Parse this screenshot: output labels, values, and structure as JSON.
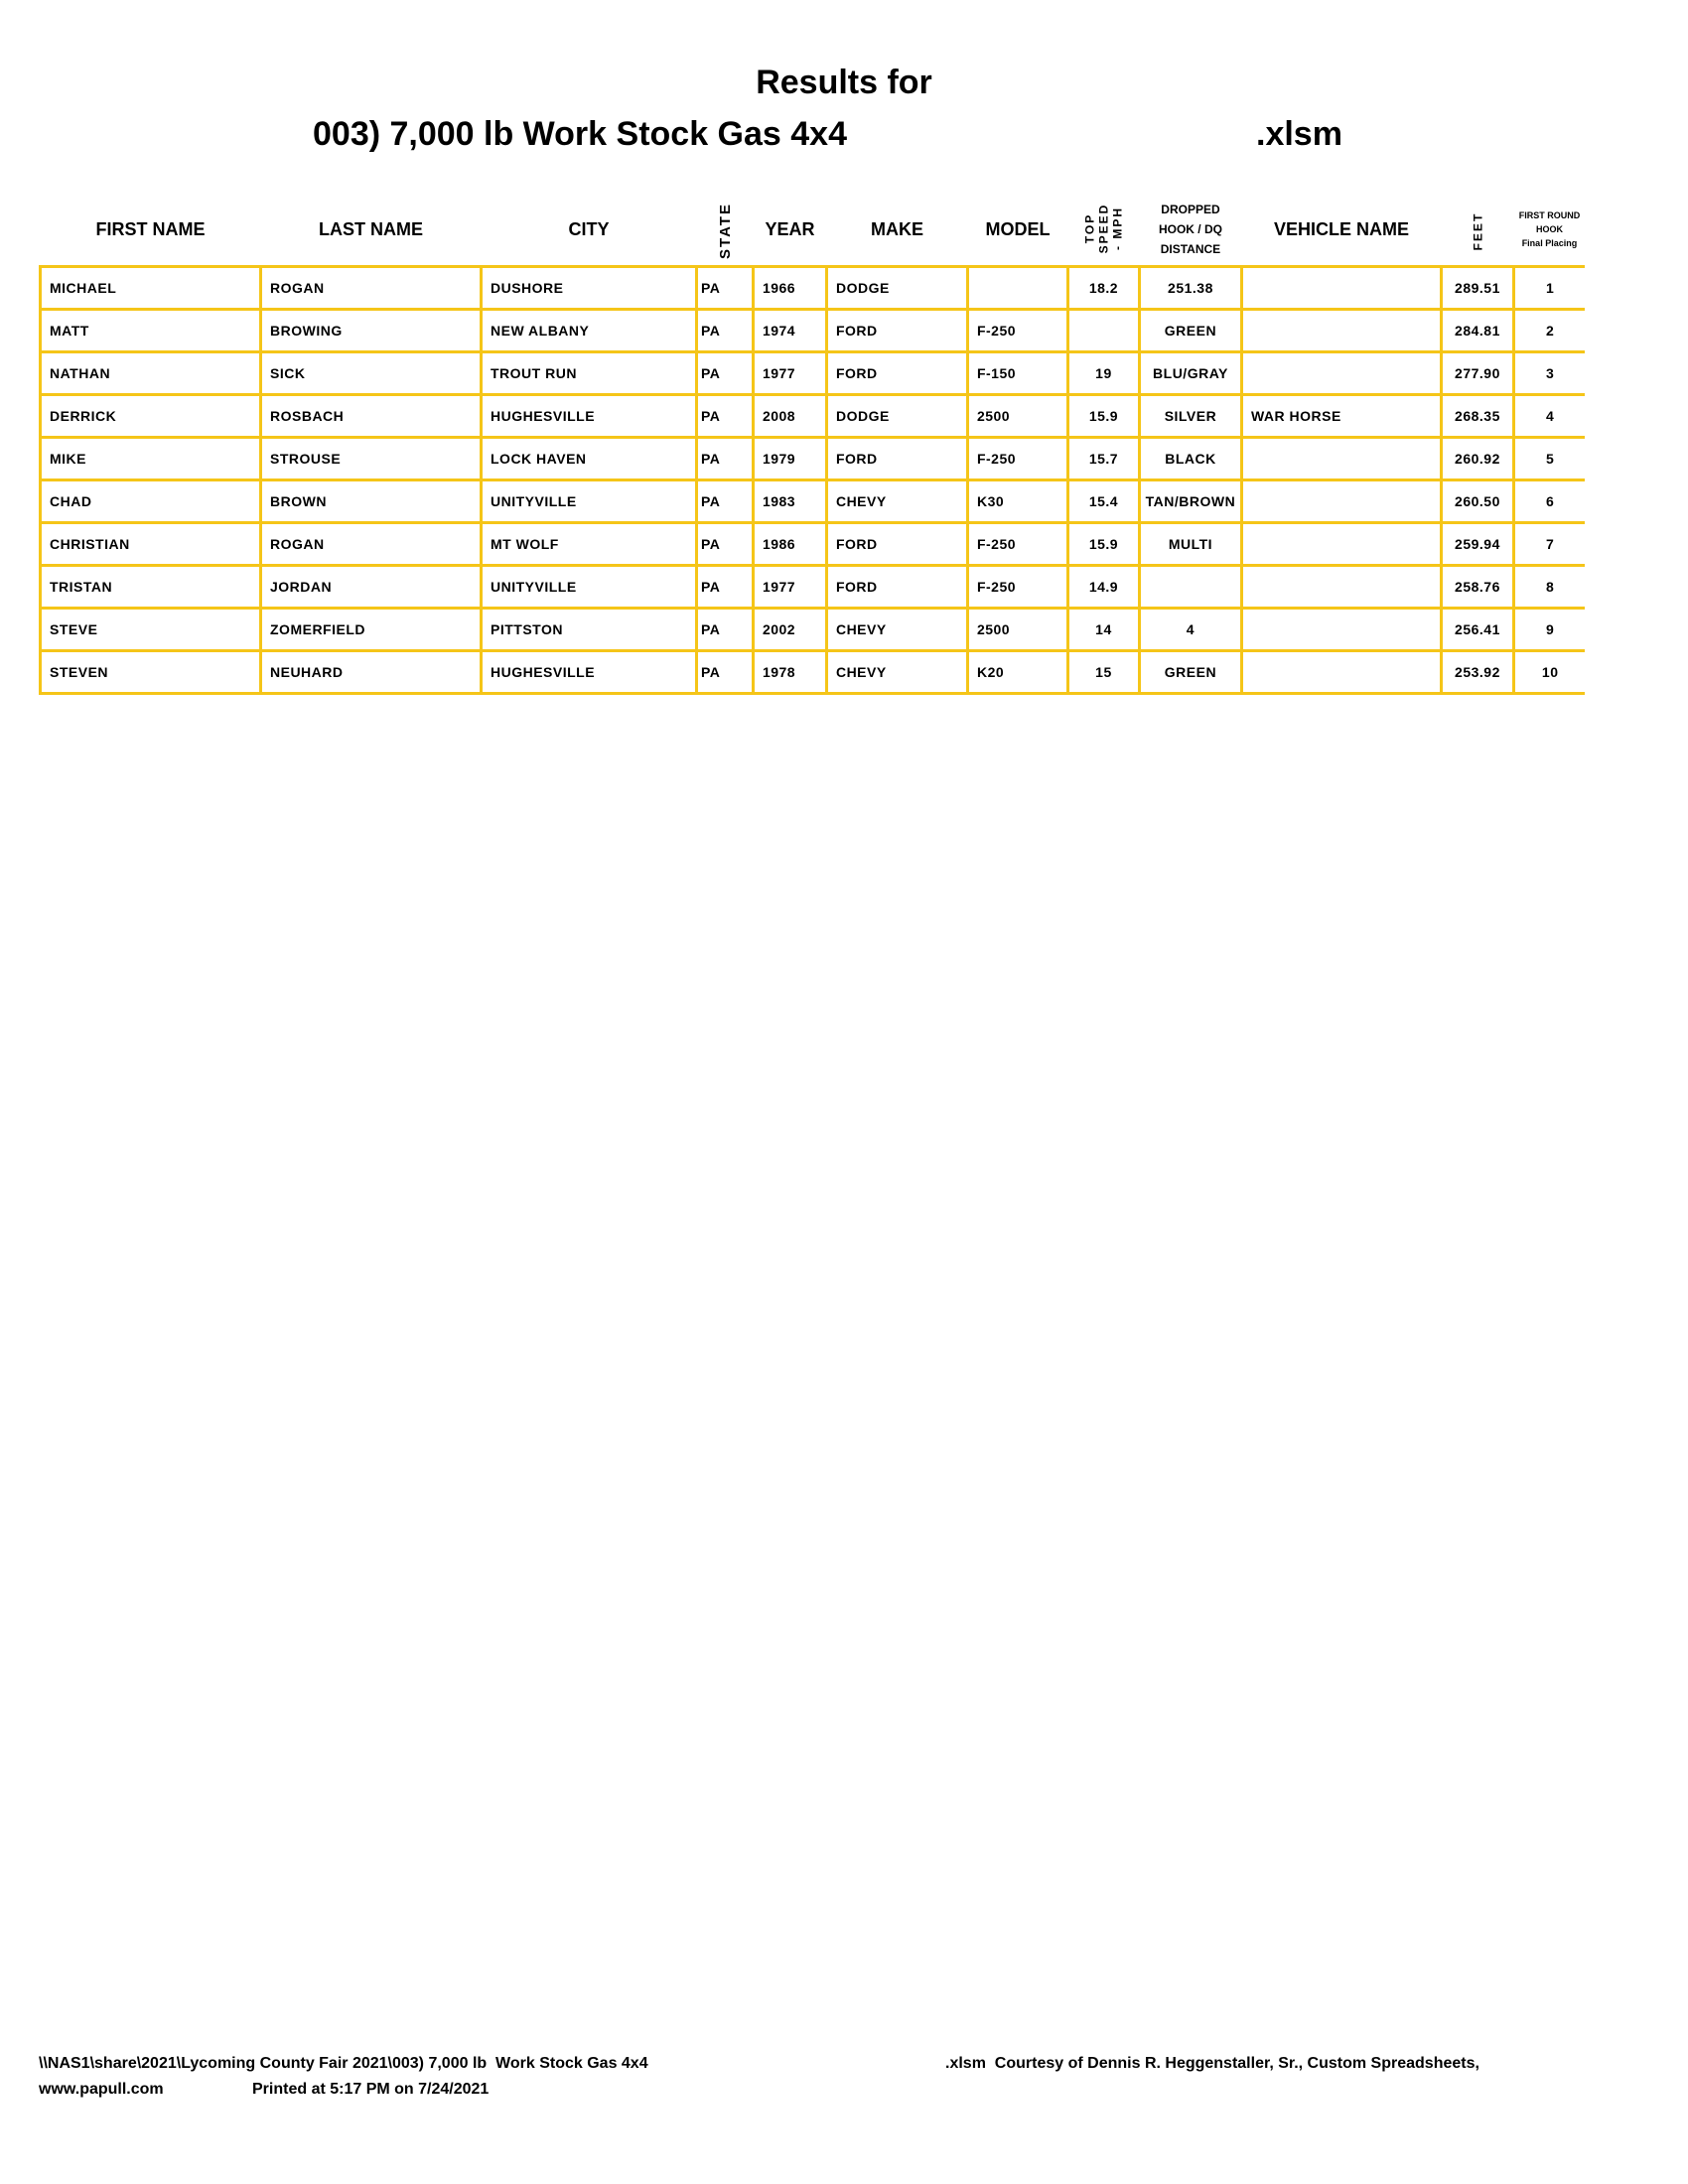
{
  "title": {
    "line1": "Results for",
    "line2": "003) 7,000 lb  Work Stock Gas 4x4",
    "ext": ".xlsm"
  },
  "accent_color": "#f5c518",
  "columns": [
    "FIRST NAME",
    "LAST NAME",
    "CITY",
    "STATE",
    "YEAR",
    "MAKE",
    "MODEL",
    "TOP SPEED - MPH",
    "DROPPED HOOK / DQ DISTANCE",
    "VEHICLE NAME",
    "FEET",
    "FIRST ROUND HOOK Final Placing"
  ],
  "header": {
    "first": "FIRST NAME",
    "last": "LAST NAME",
    "city": "CITY",
    "state": "STATE",
    "year": "YEAR",
    "make": "MAKE",
    "model": "MODEL",
    "speed": [
      "TOP",
      "SPEED",
      "- MPH"
    ],
    "dropped": [
      "DROPPED",
      "HOOK / DQ",
      "DISTANCE"
    ],
    "vehicle": "VEHICLE NAME",
    "feet": "FEET",
    "place": [
      "FIRST ROUND",
      "HOOK",
      "Final Placing"
    ]
  },
  "rows": [
    [
      "MICHAEL",
      "ROGAN",
      "DUSHORE",
      "PA",
      "1966",
      "DODGE",
      "",
      "18.2",
      "251.38",
      "",
      "289.51",
      "1"
    ],
    [
      "MATT",
      "BROWING",
      "NEW ALBANY",
      "PA",
      "1974",
      "FORD",
      "F-250",
      "",
      "GREEN",
      "",
      "284.81",
      "2"
    ],
    [
      "NATHAN",
      "SICK",
      "TROUT RUN",
      "PA",
      "1977",
      "FORD",
      "F-150",
      "19",
      "BLU/GRAY",
      "",
      "277.90",
      "3"
    ],
    [
      "DERRICK",
      "ROSBACH",
      "HUGHESVILLE",
      "PA",
      "2008",
      "DODGE",
      "2500",
      "15.9",
      "SILVER",
      "WAR HORSE",
      "268.35",
      "4"
    ],
    [
      "MIKE",
      "STROUSE",
      "LOCK HAVEN",
      "PA",
      "1979",
      "FORD",
      "F-250",
      "15.7",
      "BLACK",
      "",
      "260.92",
      "5"
    ],
    [
      "CHAD",
      "BROWN",
      "UNITYVILLE",
      "PA",
      "1983",
      "CHEVY",
      "K30",
      "15.4",
      "TAN/BROWN",
      "",
      "260.50",
      "6"
    ],
    [
      "CHRISTIAN",
      "ROGAN",
      "MT WOLF",
      "PA",
      "1986",
      "FORD",
      "F-250",
      "15.9",
      "MULTI",
      "",
      "259.94",
      "7"
    ],
    [
      "TRISTAN",
      "JORDAN",
      "UNITYVILLE",
      "PA",
      "1977",
      "FORD",
      "F-250",
      "14.9",
      "",
      "",
      "258.76",
      "8"
    ],
    [
      "STEVE",
      "ZOMERFIELD",
      "PITTSTON",
      "PA",
      "2002",
      "CHEVY",
      "2500",
      "14",
      "4",
      "",
      "256.41",
      "9"
    ],
    [
      "STEVEN",
      "NEUHARD",
      "HUGHESVILLE",
      "PA",
      "1978",
      "CHEVY",
      "K20",
      "15",
      "GREEN",
      "",
      "253.92",
      "10"
    ]
  ],
  "footer": {
    "path": "\\\\NAS1\\share\\2021\\Lycoming County Fair 2021\\003) 7,000 lb  Work Stock Gas 4x4",
    "credit": ".xlsm  Courtesy of Dennis R. Heggenstaller, Sr., Custom Spreadsheets,",
    "site": "www.papull.com",
    "printed": "Printed at 5:17 PM on 7/24/2021"
  }
}
